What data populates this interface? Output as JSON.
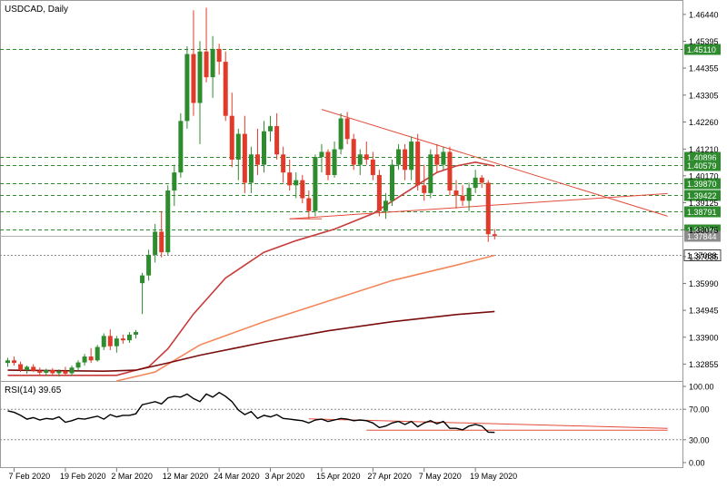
{
  "window": {
    "symbol_label": "USDCAD, Daily",
    "indicator_label": "RSI(14) 39.65"
  },
  "colors": {
    "up": "#2e8b2e",
    "down": "#e03b2a",
    "grid": "#2e8b2e",
    "level_label_bg": "#2e8b2e",
    "price_label_bg": "#8c8c8c",
    "trend": "#e34b3a",
    "ma_short": "#c83b3b",
    "ma_mid": "#f4875a",
    "ma_long": "#7a0d0d",
    "rsi": "#000000"
  },
  "chart_data": {
    "type": "candlestick",
    "title": "USDCAD, Daily",
    "ylim": [
      1.322,
      1.47
    ],
    "y_ticks": [
      "1.46440",
      "1.45395",
      "1.44355",
      "1.43305",
      "1.42260",
      "1.41210",
      "1.40170",
      "1.39125",
      "1.38075",
      "1.37035",
      "1.35990",
      "1.34945",
      "1.33900",
      "1.32855"
    ],
    "x_labels": [
      "7 Feb 2020",
      "19 Feb 2020",
      "2 Mar 2020",
      "12 Mar 2020",
      "24 Mar 2020",
      "3 Apr 2020",
      "15 Apr 2020",
      "27 Apr 2020",
      "7 May 2020",
      "19 May 2020"
    ],
    "x_label_bars": [
      1,
      9,
      17,
      25,
      33,
      41,
      49,
      57,
      65,
      73
    ],
    "levels": [
      {
        "label": "1.45110",
        "value": 1.4511,
        "style": "dashed"
      },
      {
        "label": "1.40896",
        "value": 1.40896,
        "style": "dashed"
      },
      {
        "label": "1.40579",
        "value": 1.40579,
        "style": "dashed"
      },
      {
        "label": "1.39870",
        "value": 1.3987,
        "style": "dashed"
      },
      {
        "label": "1.39422",
        "value": 1.39422,
        "style": "dashed"
      },
      {
        "label": "1.38791",
        "value": 1.38791,
        "style": "dashed"
      },
      {
        "label": "1.38084",
        "value": 1.38084,
        "style": "dashed"
      },
      {
        "label": "1.37088",
        "value": 1.37088,
        "style": "dotted"
      }
    ],
    "current_price": {
      "label": "1.37844",
      "value": 1.37844
    },
    "candles": [
      {
        "o": 1.329,
        "h": 1.331,
        "l": 1.3275,
        "c": 1.33
      },
      {
        "o": 1.33,
        "h": 1.3315,
        "l": 1.328,
        "c": 1.329
      },
      {
        "o": 1.3285,
        "h": 1.3295,
        "l": 1.3255,
        "c": 1.3262
      },
      {
        "o": 1.3262,
        "h": 1.328,
        "l": 1.3248,
        "c": 1.3275
      },
      {
        "o": 1.3275,
        "h": 1.3285,
        "l": 1.3255,
        "c": 1.326
      },
      {
        "o": 1.326,
        "h": 1.3272,
        "l": 1.3245,
        "c": 1.3252
      },
      {
        "o": 1.3252,
        "h": 1.3268,
        "l": 1.324,
        "c": 1.3262
      },
      {
        "o": 1.3262,
        "h": 1.327,
        "l": 1.3245,
        "c": 1.325
      },
      {
        "o": 1.325,
        "h": 1.3265,
        "l": 1.3238,
        "c": 1.3258
      },
      {
        "o": 1.3258,
        "h": 1.3275,
        "l": 1.324,
        "c": 1.3248
      },
      {
        "o": 1.325,
        "h": 1.328,
        "l": 1.324,
        "c": 1.3272
      },
      {
        "o": 1.3272,
        "h": 1.33,
        "l": 1.326,
        "c": 1.3292
      },
      {
        "o": 1.3292,
        "h": 1.3325,
        "l": 1.328,
        "c": 1.3315
      },
      {
        "o": 1.3315,
        "h": 1.3348,
        "l": 1.329,
        "c": 1.33
      },
      {
        "o": 1.33,
        "h": 1.336,
        "l": 1.3295,
        "c": 1.3352
      },
      {
        "o": 1.3352,
        "h": 1.3405,
        "l": 1.334,
        "c": 1.3395
      },
      {
        "o": 1.3395,
        "h": 1.342,
        "l": 1.334,
        "c": 1.3355
      },
      {
        "o": 1.3355,
        "h": 1.3395,
        "l": 1.333,
        "c": 1.3385
      },
      {
        "o": 1.3385,
        "h": 1.34,
        "l": 1.3365,
        "c": 1.3378
      },
      {
        "o": 1.3378,
        "h": 1.341,
        "l": 1.3368,
        "c": 1.34
      },
      {
        "o": 1.34,
        "h": 1.3418,
        "l": 1.3385,
        "c": 1.341
      },
      {
        "o": 1.36,
        "h": 1.364,
        "l": 1.348,
        "c": 1.363
      },
      {
        "o": 1.363,
        "h": 1.373,
        "l": 1.361,
        "c": 1.371
      },
      {
        "o": 1.371,
        "h": 1.383,
        "l": 1.368,
        "c": 1.38
      },
      {
        "o": 1.38,
        "h": 1.388,
        "l": 1.37,
        "c": 1.372
      },
      {
        "o": 1.372,
        "h": 1.398,
        "l": 1.371,
        "c": 1.396
      },
      {
        "o": 1.396,
        "h": 1.406,
        "l": 1.39,
        "c": 1.403
      },
      {
        "o": 1.403,
        "h": 1.426,
        "l": 1.401,
        "c": 1.423
      },
      {
        "o": 1.423,
        "h": 1.452,
        "l": 1.42,
        "c": 1.449
      },
      {
        "o": 1.449,
        "h": 1.466,
        "l": 1.425,
        "c": 1.43
      },
      {
        "o": 1.43,
        "h": 1.454,
        "l": 1.414,
        "c": 1.45
      },
      {
        "o": 1.45,
        "h": 1.467,
        "l": 1.438,
        "c": 1.44
      },
      {
        "o": 1.44,
        "h": 1.456,
        "l": 1.432,
        "c": 1.451
      },
      {
        "o": 1.451,
        "h": 1.453,
        "l": 1.441,
        "c": 1.446
      },
      {
        "o": 1.446,
        "h": 1.45,
        "l": 1.423,
        "c": 1.425
      },
      {
        "o": 1.425,
        "h": 1.434,
        "l": 1.405,
        "c": 1.408
      },
      {
        "o": 1.408,
        "h": 1.42,
        "l": 1.4,
        "c": 1.418
      },
      {
        "o": 1.418,
        "h": 1.425,
        "l": 1.395,
        "c": 1.399
      },
      {
        "o": 1.399,
        "h": 1.413,
        "l": 1.395,
        "c": 1.41
      },
      {
        "o": 1.41,
        "h": 1.42,
        "l": 1.402,
        "c": 1.406
      },
      {
        "o": 1.406,
        "h": 1.423,
        "l": 1.403,
        "c": 1.419
      },
      {
        "o": 1.419,
        "h": 1.425,
        "l": 1.415,
        "c": 1.421
      },
      {
        "o": 1.421,
        "h": 1.426,
        "l": 1.408,
        "c": 1.41
      },
      {
        "o": 1.41,
        "h": 1.413,
        "l": 1.399,
        "c": 1.403
      },
      {
        "o": 1.403,
        "h": 1.408,
        "l": 1.396,
        "c": 1.398
      },
      {
        "o": 1.398,
        "h": 1.403,
        "l": 1.393,
        "c": 1.4
      },
      {
        "o": 1.4,
        "h": 1.402,
        "l": 1.391,
        "c": 1.393
      },
      {
        "o": 1.393,
        "h": 1.396,
        "l": 1.385,
        "c": 1.388
      },
      {
        "o": 1.388,
        "h": 1.41,
        "l": 1.386,
        "c": 1.409
      },
      {
        "o": 1.409,
        "h": 1.414,
        "l": 1.403,
        "c": 1.411
      },
      {
        "o": 1.411,
        "h": 1.412,
        "l": 1.4,
        "c": 1.402
      },
      {
        "o": 1.402,
        "h": 1.415,
        "l": 1.401,
        "c": 1.412
      },
      {
        "o": 1.412,
        "h": 1.426,
        "l": 1.41,
        "c": 1.424
      },
      {
        "o": 1.424,
        "h": 1.4265,
        "l": 1.414,
        "c": 1.416
      },
      {
        "o": 1.416,
        "h": 1.418,
        "l": 1.404,
        "c": 1.406
      },
      {
        "o": 1.406,
        "h": 1.412,
        "l": 1.402,
        "c": 1.41
      },
      {
        "o": 1.41,
        "h": 1.415,
        "l": 1.406,
        "c": 1.408
      },
      {
        "o": 1.408,
        "h": 1.411,
        "l": 1.4,
        "c": 1.402
      },
      {
        "o": 1.402,
        "h": 1.404,
        "l": 1.386,
        "c": 1.388
      },
      {
        "o": 1.388,
        "h": 1.395,
        "l": 1.385,
        "c": 1.392
      },
      {
        "o": 1.392,
        "h": 1.408,
        "l": 1.39,
        "c": 1.406
      },
      {
        "o": 1.406,
        "h": 1.414,
        "l": 1.404,
        "c": 1.412
      },
      {
        "o": 1.412,
        "h": 1.414,
        "l": 1.4,
        "c": 1.404
      },
      {
        "o": 1.404,
        "h": 1.417,
        "l": 1.4,
        "c": 1.415
      },
      {
        "o": 1.415,
        "h": 1.418,
        "l": 1.396,
        "c": 1.398
      },
      {
        "o": 1.398,
        "h": 1.406,
        "l": 1.392,
        "c": 1.395
      },
      {
        "o": 1.395,
        "h": 1.412,
        "l": 1.393,
        "c": 1.41
      },
      {
        "o": 1.41,
        "h": 1.414,
        "l": 1.403,
        "c": 1.406
      },
      {
        "o": 1.406,
        "h": 1.413,
        "l": 1.404,
        "c": 1.411
      },
      {
        "o": 1.411,
        "h": 1.413,
        "l": 1.394,
        "c": 1.396
      },
      {
        "o": 1.396,
        "h": 1.4,
        "l": 1.389,
        "c": 1.394
      },
      {
        "o": 1.394,
        "h": 1.398,
        "l": 1.39,
        "c": 1.392
      },
      {
        "o": 1.392,
        "h": 1.399,
        "l": 1.388,
        "c": 1.397
      },
      {
        "o": 1.397,
        "h": 1.404,
        "l": 1.395,
        "c": 1.401
      },
      {
        "o": 1.401,
        "h": 1.402,
        "l": 1.397,
        "c": 1.399
      },
      {
        "o": 1.399,
        "h": 1.4,
        "l": 1.376,
        "c": 1.379
      },
      {
        "o": 1.379,
        "h": 1.381,
        "l": 1.377,
        "c": 1.3784
      }
    ],
    "moving_averages": [
      {
        "name": "ma_short",
        "points": [
          [
            0,
            1.3242
          ],
          [
            17,
            1.3242
          ],
          [
            22,
            1.3275
          ],
          [
            25,
            1.3345
          ],
          [
            29,
            1.348
          ],
          [
            34,
            1.362
          ],
          [
            40,
            1.372
          ],
          [
            45,
            1.3765
          ],
          [
            51,
            1.381
          ],
          [
            57,
            1.387
          ],
          [
            62,
            1.395
          ],
          [
            67,
            1.403
          ],
          [
            70,
            1.4055
          ],
          [
            73,
            1.407
          ],
          [
            76,
            1.4055
          ]
        ]
      },
      {
        "name": "ma_mid",
        "points": [
          [
            17,
            1.322
          ],
          [
            23,
            1.3255
          ],
          [
            26,
            1.33
          ],
          [
            30,
            1.336
          ],
          [
            40,
            1.345
          ],
          [
            50,
            1.353
          ],
          [
            60,
            1.361
          ],
          [
            70,
            1.367
          ],
          [
            76,
            1.3708
          ]
        ]
      },
      {
        "name": "ma_long",
        "points": [
          [
            0,
            1.3262
          ],
          [
            15,
            1.3258
          ],
          [
            20,
            1.3262
          ],
          [
            25,
            1.329
          ],
          [
            30,
            1.332
          ],
          [
            40,
            1.337
          ],
          [
            50,
            1.3415
          ],
          [
            60,
            1.345
          ],
          [
            70,
            1.3478
          ],
          [
            76,
            1.349
          ]
        ]
      }
    ],
    "trendlines": [
      {
        "from": [
          49,
          1.4275
        ],
        "to": [
          103,
          1.386
        ]
      },
      {
        "from": [
          44,
          1.385
        ],
        "to": [
          49,
          1.385
        ]
      },
      {
        "from": [
          44,
          1.385
        ],
        "to": [
          103,
          1.3948
        ]
      }
    ],
    "rsi": {
      "label": "RSI(14) 39.65",
      "value": 39.65,
      "levels": [
        70,
        30
      ],
      "ticks": [
        "100.00",
        "70.00",
        "30.00",
        "0.00"
      ],
      "values": [
        68,
        66,
        62,
        57,
        59,
        56,
        58,
        57,
        60,
        53,
        55,
        58,
        57,
        59,
        61,
        57,
        63,
        60,
        62,
        62,
        64,
        76,
        78,
        80,
        77,
        85,
        87,
        86,
        90,
        84,
        80,
        90,
        86,
        92,
        87,
        80,
        69,
        63,
        67,
        58,
        62,
        60,
        63,
        58,
        57,
        56,
        55,
        52,
        56,
        57,
        54,
        56,
        58,
        57,
        55,
        56,
        55,
        52,
        46,
        48,
        52,
        54,
        50,
        54,
        47,
        52,
        55,
        51,
        54,
        45,
        45,
        43,
        48,
        50,
        48,
        40,
        39.65
      ],
      "trendlines": [
        {
          "from": [
            47,
            57.5
          ],
          "to": [
            103,
            45
          ]
        },
        {
          "from": [
            56,
            42.5
          ],
          "to": [
            103,
            42.5
          ]
        }
      ]
    }
  }
}
